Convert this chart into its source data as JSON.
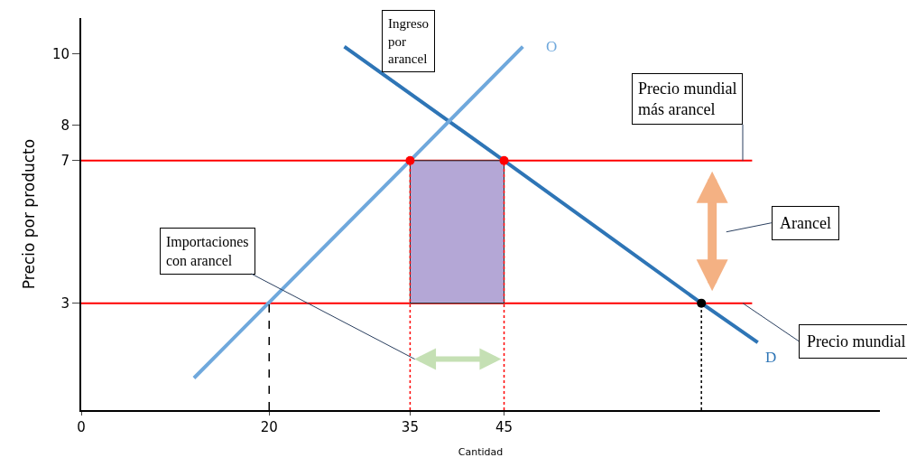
{
  "chart_data": {
    "type": "line",
    "xlabel": "Cantidad",
    "ylabel": "Precio por producto",
    "xlim": [
      0,
      85
    ],
    "ylim": [
      0,
      11
    ],
    "xticks": [
      0,
      20,
      35,
      45
    ],
    "yticks": [
      3,
      7,
      8,
      10
    ],
    "grid": false,
    "legend": false,
    "series": [
      {
        "type": "bar",
        "color": "#b4a7d6",
        "x": [
          40
        ],
        "values": [
          4
        ],
        "base": [
          3
        ]
      },
      {
        "name": "D",
        "color": "#2e75b6",
        "x": [
          28,
          45,
          66,
          72
        ],
        "values": [
          10.2,
          7,
          3,
          1.9
        ]
      },
      {
        "name": "O",
        "color": "#6fa8dc",
        "x": [
          12,
          35,
          47
        ],
        "values": [
          0.9,
          7,
          10.2
        ]
      },
      {
        "color": "#000000",
        "line_style": "dashed",
        "x": [
          20,
          20
        ],
        "values": [
          0,
          3
        ]
      },
      {
        "color": "#ff0000",
        "line_style": "dotted",
        "x": [
          35,
          35
        ],
        "values": [
          0,
          7
        ]
      },
      {
        "color": "#ff0000",
        "line_style": "dotted",
        "x": [
          45,
          45
        ],
        "values": [
          0,
          7
        ]
      },
      {
        "color": "#000000",
        "line_style": "dotted",
        "x": [
          66,
          66
        ],
        "values": [
          0,
          3
        ]
      },
      {
        "type": "scatter",
        "marker": "circle",
        "colors": [
          "#ff0000",
          "#ff0000",
          "#000000"
        ],
        "x": [
          35,
          45,
          66
        ],
        "values": [
          7,
          7,
          3
        ]
      }
    ],
    "ref_lines": [
      {
        "axis": "y",
        "value": 3,
        "label": "Precio mundial",
        "color": "#ff0000"
      },
      {
        "axis": "y",
        "value": 7,
        "label": "Precio mundial más arancel",
        "color": "#ff0000"
      }
    ],
    "annotations": [
      "Ingreso por arancel",
      "Arancel",
      "Importaciones con arancel"
    ]
  }
}
